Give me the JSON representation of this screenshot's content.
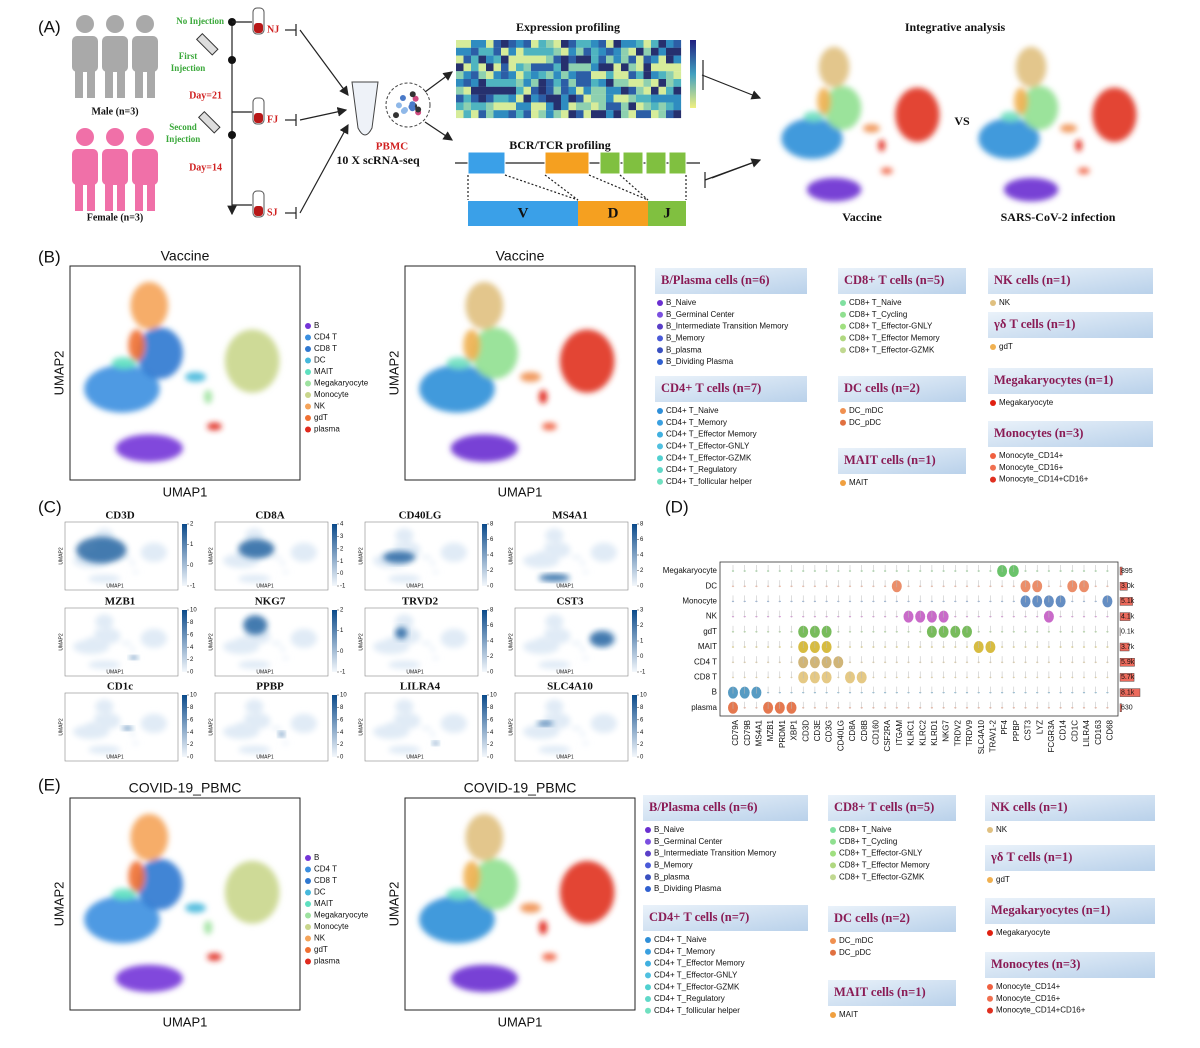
{
  "panel_a": {
    "label": "(A)",
    "no_injection": "No Injection",
    "first_injection": [
      "First",
      "Injection"
    ],
    "day_21": "Day=21",
    "second_injection": [
      "Second",
      "Injection"
    ],
    "day_14": "Day=14",
    "male": "Male (n=3)",
    "female": "Female (n=3)",
    "samples": [
      "NJ",
      "FJ",
      "SJ"
    ],
    "pbmc": "PBMC",
    "method": "10 X scRNA-seq",
    "expression": "Expression profiling",
    "bcr_tcr": "BCR/TCR profiling",
    "segments": [
      "V",
      "D",
      "J"
    ],
    "integrative": "Integrative analysis",
    "vs": "VS",
    "left": "Vaccine",
    "right": "SARS-CoV-2 infection"
  },
  "panel_b": {
    "label": "(B)",
    "titles": [
      "Vaccine",
      "Vaccine"
    ],
    "x_axis": "UMAP1",
    "y_axis": "UMAP2"
  },
  "clusters": [
    {
      "name": "B",
      "color": "#7434d8"
    },
    {
      "name": "CD4 T",
      "color": "#3b8fe0"
    },
    {
      "name": "CD8 T",
      "color": "#2f78d0"
    },
    {
      "name": "DC",
      "color": "#46b8dc"
    },
    {
      "name": "MAIT",
      "color": "#5ee0c0"
    },
    {
      "name": "Megakaryocyte",
      "color": "#9ee2a0"
    },
    {
      "name": "Monocyte",
      "color": "#c9d68c"
    },
    {
      "name": "NK",
      "color": "#f5a45a"
    },
    {
      "name": "gdT",
      "color": "#f07032"
    },
    {
      "name": "plasma",
      "color": "#e02a1e"
    }
  ],
  "cell_type_groups": [
    {
      "title": "B/Plasma cells (n=6)",
      "items": [
        {
          "name": "B_Naive",
          "color": "#6a2fd0"
        },
        {
          "name": "B_Germinal Center",
          "color": "#7b4fe0"
        },
        {
          "name": "B_Intermediate Transition Memory",
          "color": "#5a3fc8"
        },
        {
          "name": "B_Memory",
          "color": "#4a5ad8"
        },
        {
          "name": "B_plasma",
          "color": "#3a50c0"
        },
        {
          "name": "B_Dividing Plasma",
          "color": "#3060d0"
        }
      ]
    },
    {
      "title": "CD4+ T cells (n=7)",
      "items": [
        {
          "name": "CD4+ T_Naive",
          "color": "#2f8fd8"
        },
        {
          "name": "CD4+ T_Memory",
          "color": "#3aa0e0"
        },
        {
          "name": "CD4+ T_Effector Memory",
          "color": "#40b0e0"
        },
        {
          "name": "CD4+ T_Effector-GNLY",
          "color": "#50c0e0"
        },
        {
          "name": "CD4+ T_Effector-GZMK",
          "color": "#50d0d0"
        },
        {
          "name": "CD4+ T_Regulatory",
          "color": "#60d8c8"
        },
        {
          "name": "CD4+ T_follicular helper",
          "color": "#70e0c0"
        }
      ]
    },
    {
      "title": "CD8+ T cells (n=5)",
      "items": [
        {
          "name": "CD8+ T_Naive",
          "color": "#80e0a0"
        },
        {
          "name": "CD8+ T_Cycling",
          "color": "#90e090"
        },
        {
          "name": "CD8+ T_Effector-GNLY",
          "color": "#a0e080"
        },
        {
          "name": "CD8+ T_Effector Memory",
          "color": "#b0d880"
        },
        {
          "name": "CD8+ T_Effector-GZMK",
          "color": "#c0d890"
        }
      ]
    },
    {
      "title": "DC cells (n=2)",
      "items": [
        {
          "name": "DC_mDC",
          "color": "#f09050"
        },
        {
          "name": "DC_pDC",
          "color": "#e07040"
        }
      ]
    },
    {
      "title": "MAIT cells (n=1)",
      "items": [
        {
          "name": "MAIT",
          "color": "#f0a040"
        }
      ]
    },
    {
      "title": "NK cells (n=1)",
      "items": [
        {
          "name": "NK",
          "color": "#e0c080"
        }
      ]
    },
    {
      "title": "γδ T cells (n=1)",
      "items": [
        {
          "name": "gdT",
          "color": "#f0b050"
        }
      ]
    },
    {
      "title": "Megakaryocytes (n=1)",
      "items": [
        {
          "name": "Megakaryocyte",
          "color": "#e02010"
        }
      ]
    },
    {
      "title": "Monocytes (n=3)",
      "items": [
        {
          "name": "Monocyte_CD14+",
          "color": "#f06040"
        },
        {
          "name": "Monocyte_CD16+",
          "color": "#f07050"
        },
        {
          "name": "Monocyte_CD14+CD16+",
          "color": "#e03020"
        }
      ]
    }
  ],
  "panel_c": {
    "label": "(C)",
    "x_axis": "UMAP1",
    "y_axis": "UMAP2",
    "genes": [
      {
        "name": "CD3D",
        "ticks": [
          2,
          1,
          0,
          -1
        ]
      },
      {
        "name": "CD8A",
        "ticks": [
          4,
          3,
          2,
          1,
          0,
          -1
        ]
      },
      {
        "name": "CD40LG",
        "ticks": [
          8,
          6,
          4,
          2,
          0
        ]
      },
      {
        "name": "MS4A1",
        "ticks": [
          8,
          6,
          4,
          2,
          0
        ]
      },
      {
        "name": "MZB1",
        "ticks": [
          10,
          8,
          6,
          4,
          2,
          0
        ]
      },
      {
        "name": "NKG7",
        "ticks": [
          2,
          1,
          0,
          -1
        ]
      },
      {
        "name": "TRVD2",
        "ticks": [
          8,
          6,
          4,
          2,
          0
        ]
      },
      {
        "name": "CST3",
        "ticks": [
          3,
          2,
          1,
          0,
          -1
        ]
      },
      {
        "name": "CD1c",
        "ticks": [
          10,
          8,
          6,
          4,
          2,
          0
        ]
      },
      {
        "name": "PPBP",
        "ticks": [
          10,
          8,
          6,
          4,
          2,
          0
        ]
      },
      {
        "name": "LILRA4",
        "ticks": [
          10,
          8,
          6,
          4,
          2,
          0
        ]
      },
      {
        "name": "SLC4A10",
        "ticks": [
          10,
          8,
          6,
          4,
          2,
          0
        ]
      }
    ]
  },
  "panel_d": {
    "label": "(D)",
    "cell_types": [
      "Megakaryocyte",
      "DC",
      "Monocyte",
      "NK",
      "gdT",
      "MAIT",
      "CD4 T",
      "CD8 T",
      "B",
      "plasma"
    ],
    "genes": [
      "CD79A",
      "CD79B",
      "MS4A1",
      "MZB1",
      "PRDM1",
      "XBP1",
      "CD3D",
      "CD3E",
      "CD3G",
      "CD40LG",
      "CD8A",
      "CD8B",
      "CD160",
      "CSF2RA",
      "ITGAM",
      "KLRC1",
      "KLRC2",
      "KLRD1",
      "NKG7",
      "TRDV2",
      "TRDV9",
      "SLC4A10",
      "TRAV1-2",
      "PF4",
      "PPBP",
      "CST3",
      "LYZ",
      "FCGR3A",
      "CD14",
      "CD1C",
      "LILRA4",
      "CD163",
      "CD68"
    ],
    "cell_counts": [
      {
        "value": 895,
        "label": "895"
      },
      {
        "value": 3000,
        "label": "3.0k"
      },
      {
        "value": 5100,
        "label": "5.1k"
      },
      {
        "value": 4100,
        "label": "4.1k"
      },
      {
        "value": 100,
        "label": "0.1k"
      },
      {
        "value": 3700,
        "label": "3.7k"
      },
      {
        "value": 5900,
        "label": "5.9k"
      },
      {
        "value": 5700,
        "label": "5.7k"
      },
      {
        "value": 8100,
        "label": "8.1k"
      },
      {
        "value": 630,
        "label": "630"
      }
    ]
  },
  "panel_e": {
    "label": "(E)",
    "titles": [
      "COVID-19_PBMC",
      "COVID-19_PBMC"
    ],
    "x_axis": "UMAP1",
    "y_axis": "UMAP2"
  }
}
